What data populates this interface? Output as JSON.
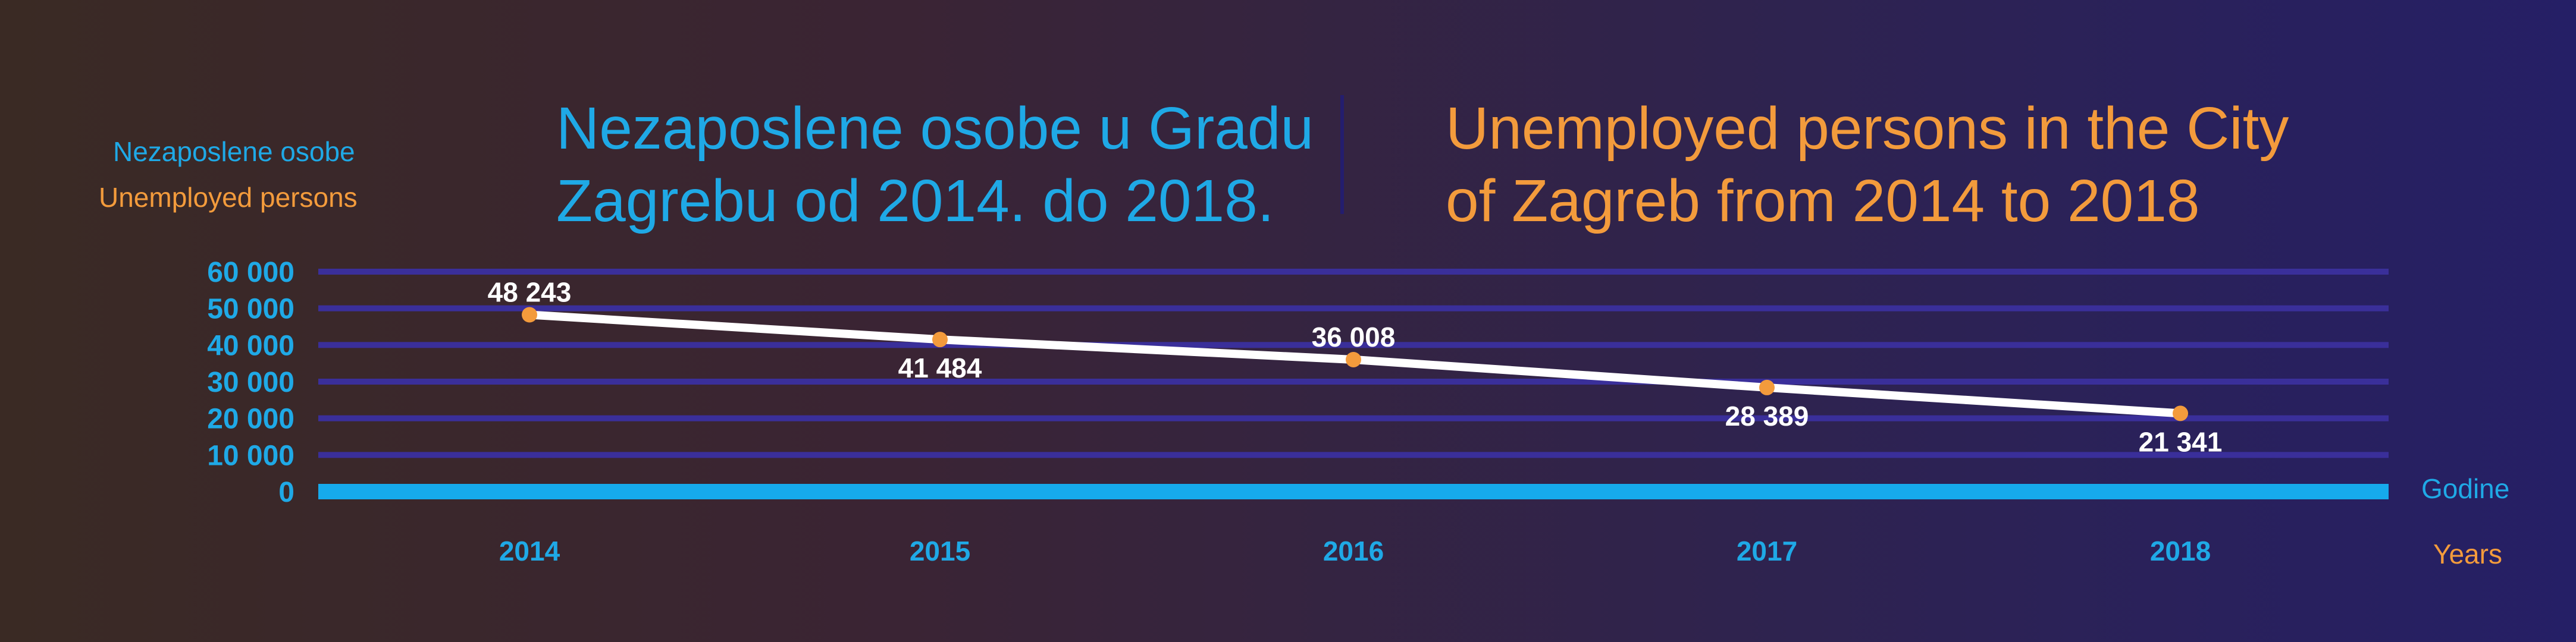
{
  "header": {
    "title_hr_line1": "Nezaposlene osobe u Gradu",
    "title_hr_line2": "Zagrebu od 2014. do 2018.",
    "title_en_line1": "Unemployed persons in the City",
    "title_en_line2": "of Zagreb from 2014 to 2018"
  },
  "axes": {
    "ylabel_hr": "Nezaposlene osobe",
    "ylabel_en": "Unemployed persons",
    "xlabel_hr": "Godine",
    "xlabel_en": "Years"
  },
  "colors": {
    "cyan": "#1fa9e6",
    "orange": "#f39b3c",
    "gridline": "#3a2f9a",
    "baseline": "#16aaec",
    "line": "#ffffff"
  },
  "chart_data": {
    "type": "line",
    "categories": [
      "2014",
      "2015",
      "2016",
      "2017",
      "2018"
    ],
    "series": [
      {
        "values": [
          48243,
          41484,
          36008,
          28389,
          21341
        ]
      }
    ],
    "data_labels": [
      "48 243",
      "41 484",
      "36 008",
      "28 389",
      "21 341"
    ],
    "ylim": [
      0,
      60000
    ],
    "y_ticks": [
      0,
      10000,
      20000,
      30000,
      40000,
      50000,
      60000
    ],
    "y_tick_labels": [
      "0",
      "10 000",
      "20 000",
      "30 000",
      "40 000",
      "50 000",
      "60 000"
    ],
    "grid": true,
    "legend": "none"
  }
}
